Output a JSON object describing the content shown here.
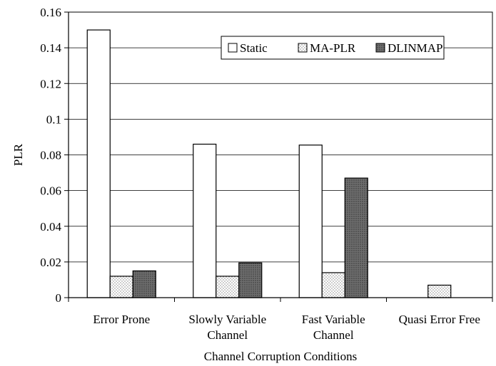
{
  "chart_data": {
    "type": "bar",
    "categories": [
      [
        "Error Prone"
      ],
      [
        "Slowly Variable",
        "Channel"
      ],
      [
        "Fast Variable",
        "Channel"
      ],
      [
        "Quasi Error Free"
      ]
    ],
    "series": [
      {
        "name": "Static",
        "values": [
          0.15,
          0.086,
          0.0855,
          0.0
        ],
        "color": "#ffffff",
        "pattern": "none"
      },
      {
        "name": "MA-PLR",
        "values": [
          0.012,
          0.012,
          0.014,
          0.007
        ],
        "color": "#ffffff",
        "pattern": "dots"
      },
      {
        "name": "DLINMAP",
        "values": [
          0.015,
          0.0195,
          0.067,
          0.0
        ],
        "color": "#6e6e6e",
        "pattern": "dense-dots"
      }
    ],
    "xlabel": "Channel Corruption Conditions",
    "ylabel": "PLR",
    "ylim": [
      0,
      0.16
    ],
    "yticks": [
      0,
      0.02,
      0.04,
      0.06,
      0.08,
      0.1,
      0.12,
      0.14,
      0.16
    ],
    "ytick_labels": [
      "0",
      "0.02",
      "0.04",
      "0.06",
      "0.08",
      "0.1",
      "0.12",
      "0.14",
      "0.16"
    ],
    "grid": true,
    "legend_position": "top-right"
  }
}
